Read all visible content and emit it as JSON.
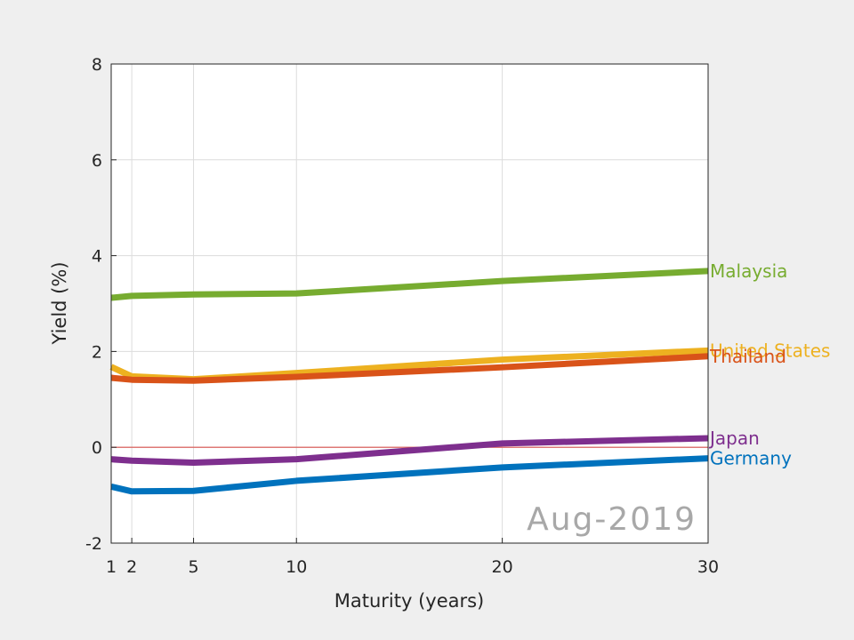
{
  "chart_data": {
    "type": "line",
    "title": "",
    "annotation": "Aug-2019",
    "xlabel": "Maturity (years)",
    "ylabel": "Yield (%)",
    "xlim": [
      1,
      30
    ],
    "ylim": [
      -2,
      8
    ],
    "xticks": [
      1,
      2,
      5,
      10,
      20,
      30
    ],
    "yticks": [
      -2,
      0,
      2,
      4,
      6,
      8
    ],
    "grid": true,
    "reference_line": {
      "y": 0,
      "color": "#d9534f"
    },
    "series": [
      {
        "name": "Malaysia",
        "color": "#77ac30",
        "x": [
          1,
          2,
          5,
          10,
          20,
          30
        ],
        "y": [
          3.12,
          3.16,
          3.19,
          3.21,
          3.47,
          3.68
        ]
      },
      {
        "name": "United States",
        "color": "#edb120",
        "x": [
          1,
          2,
          5,
          10,
          20,
          30
        ],
        "y": [
          1.68,
          1.48,
          1.42,
          1.55,
          1.83,
          2.02
        ]
      },
      {
        "name": "Thailand",
        "color": "#d95319",
        "x": [
          1,
          2,
          5,
          10,
          20,
          30
        ],
        "y": [
          1.45,
          1.41,
          1.39,
          1.47,
          1.67,
          1.9
        ]
      },
      {
        "name": "Japan",
        "color": "#7e2f8e",
        "x": [
          1,
          2,
          5,
          10,
          20,
          30
        ],
        "y": [
          -0.25,
          -0.28,
          -0.32,
          -0.25,
          0.08,
          0.19
        ]
      },
      {
        "name": "Germany",
        "color": "#0072bd",
        "x": [
          1,
          2,
          5,
          10,
          20,
          30
        ],
        "y": [
          -0.82,
          -0.92,
          -0.91,
          -0.7,
          -0.42,
          -0.23
        ]
      }
    ]
  }
}
